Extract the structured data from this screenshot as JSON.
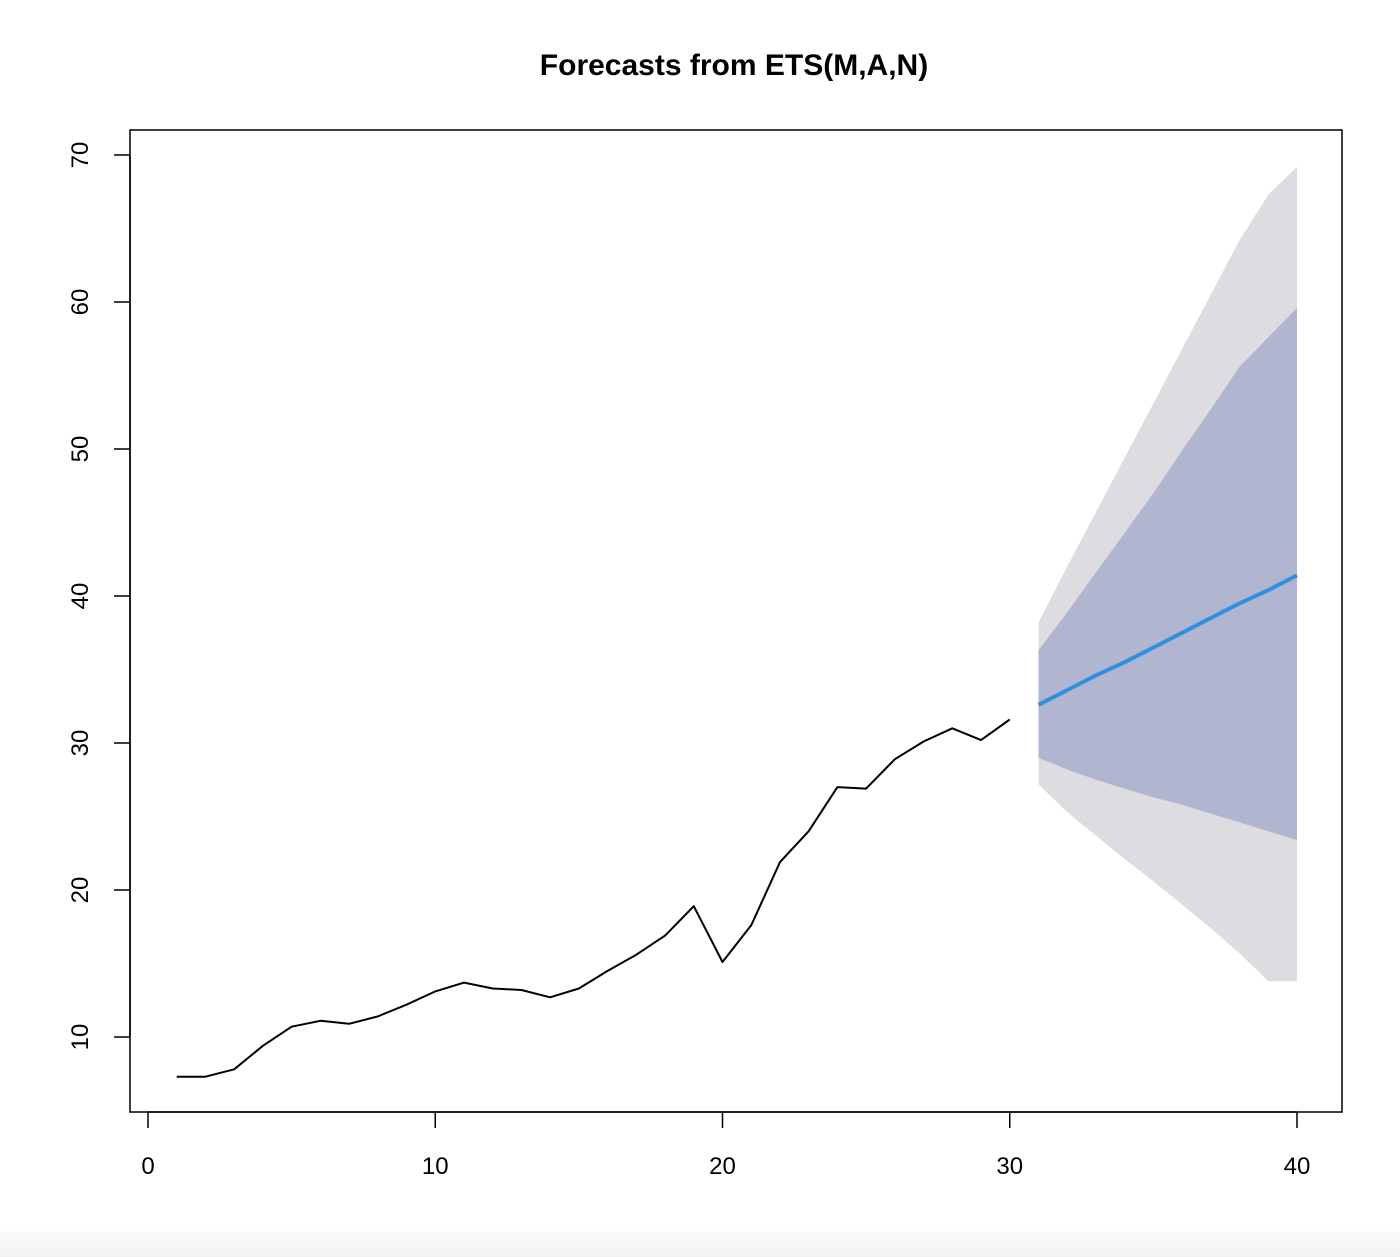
{
  "chart_data": {
    "type": "line",
    "title": "Forecasts from ETS(M,A,N)",
    "xlabel": "",
    "ylabel": "",
    "xlim": [
      0,
      40
    ],
    "ylim": [
      5,
      71.6
    ],
    "x_ticks": [
      0,
      10,
      20,
      30,
      40
    ],
    "y_ticks": [
      10,
      20,
      30,
      40,
      50,
      60,
      70
    ],
    "grid": false,
    "legend": "none",
    "colors": {
      "observed": "#000000",
      "forecast": "#2f8fe0",
      "band80": "#b0b5d0",
      "band95": "#dcdce1"
    },
    "series": [
      {
        "x": [
          1,
          2,
          3,
          4,
          5,
          6,
          7,
          8,
          9,
          10,
          11,
          12,
          13,
          14,
          15,
          16,
          17,
          18,
          19,
          20,
          21,
          22,
          23,
          24,
          25,
          26,
          27,
          28,
          29,
          30
        ],
        "values": [
          7.3,
          7.3,
          7.8,
          9.4,
          10.7,
          11.1,
          10.9,
          11.4,
          12.2,
          13.1,
          13.7,
          13.3,
          13.2,
          12.7,
          13.3,
          14.5,
          15.6,
          16.9,
          18.9,
          15.1,
          17.6,
          21.9,
          24.0,
          27.0,
          26.9,
          28.9,
          30.1,
          31.0,
          30.2,
          31.6
        ]
      },
      {
        "x": [
          31,
          32,
          33,
          34,
          35,
          36,
          37,
          38,
          39,
          40
        ],
        "values": [
          32.6,
          33.6,
          34.6,
          35.5,
          36.5,
          37.5,
          38.5,
          39.5,
          40.4,
          41.4
        ]
      }
    ],
    "intervals": {
      "x": [
        31,
        32,
        33,
        34,
        35,
        36,
        37,
        38,
        39,
        40
      ],
      "lower95": [
        27.2,
        25.3,
        23.7,
        22.1,
        20.6,
        19.0,
        17.4,
        15.7,
        13.8,
        13.8
      ],
      "upper95": [
        38.2,
        42.0,
        45.7,
        49.4,
        53.1,
        56.8,
        60.5,
        64.2,
        67.3,
        69.2
      ],
      "lower80": [
        29.0,
        28.2,
        27.5,
        26.9,
        26.3,
        25.8,
        25.2,
        24.6,
        24.0,
        23.4
      ],
      "upper80": [
        36.3,
        38.9,
        41.6,
        44.3,
        47.0,
        49.9,
        52.7,
        55.6,
        57.6,
        59.6
      ]
    }
  }
}
